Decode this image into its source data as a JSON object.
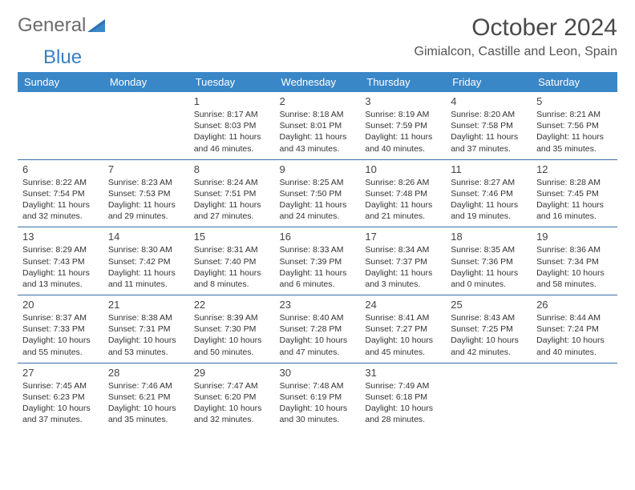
{
  "brand": {
    "word1": "General",
    "word2": "Blue"
  },
  "title": "October 2024",
  "location": "Gimialcon, Castille and Leon, Spain",
  "accent_color": "#3a87c8",
  "border_color": "#3a6fa5",
  "text_color": "#333333",
  "background_color": "#ffffff",
  "day_headers": [
    "Sunday",
    "Monday",
    "Tuesday",
    "Wednesday",
    "Thursday",
    "Friday",
    "Saturday"
  ],
  "weeks": [
    [
      null,
      null,
      {
        "n": "1",
        "sr": "Sunrise: 8:17 AM",
        "ss": "Sunset: 8:03 PM",
        "d1": "Daylight: 11 hours",
        "d2": "and 46 minutes."
      },
      {
        "n": "2",
        "sr": "Sunrise: 8:18 AM",
        "ss": "Sunset: 8:01 PM",
        "d1": "Daylight: 11 hours",
        "d2": "and 43 minutes."
      },
      {
        "n": "3",
        "sr": "Sunrise: 8:19 AM",
        "ss": "Sunset: 7:59 PM",
        "d1": "Daylight: 11 hours",
        "d2": "and 40 minutes."
      },
      {
        "n": "4",
        "sr": "Sunrise: 8:20 AM",
        "ss": "Sunset: 7:58 PM",
        "d1": "Daylight: 11 hours",
        "d2": "and 37 minutes."
      },
      {
        "n": "5",
        "sr": "Sunrise: 8:21 AM",
        "ss": "Sunset: 7:56 PM",
        "d1": "Daylight: 11 hours",
        "d2": "and 35 minutes."
      }
    ],
    [
      {
        "n": "6",
        "sr": "Sunrise: 8:22 AM",
        "ss": "Sunset: 7:54 PM",
        "d1": "Daylight: 11 hours",
        "d2": "and 32 minutes."
      },
      {
        "n": "7",
        "sr": "Sunrise: 8:23 AM",
        "ss": "Sunset: 7:53 PM",
        "d1": "Daylight: 11 hours",
        "d2": "and 29 minutes."
      },
      {
        "n": "8",
        "sr": "Sunrise: 8:24 AM",
        "ss": "Sunset: 7:51 PM",
        "d1": "Daylight: 11 hours",
        "d2": "and 27 minutes."
      },
      {
        "n": "9",
        "sr": "Sunrise: 8:25 AM",
        "ss": "Sunset: 7:50 PM",
        "d1": "Daylight: 11 hours",
        "d2": "and 24 minutes."
      },
      {
        "n": "10",
        "sr": "Sunrise: 8:26 AM",
        "ss": "Sunset: 7:48 PM",
        "d1": "Daylight: 11 hours",
        "d2": "and 21 minutes."
      },
      {
        "n": "11",
        "sr": "Sunrise: 8:27 AM",
        "ss": "Sunset: 7:46 PM",
        "d1": "Daylight: 11 hours",
        "d2": "and 19 minutes."
      },
      {
        "n": "12",
        "sr": "Sunrise: 8:28 AM",
        "ss": "Sunset: 7:45 PM",
        "d1": "Daylight: 11 hours",
        "d2": "and 16 minutes."
      }
    ],
    [
      {
        "n": "13",
        "sr": "Sunrise: 8:29 AM",
        "ss": "Sunset: 7:43 PM",
        "d1": "Daylight: 11 hours",
        "d2": "and 13 minutes."
      },
      {
        "n": "14",
        "sr": "Sunrise: 8:30 AM",
        "ss": "Sunset: 7:42 PM",
        "d1": "Daylight: 11 hours",
        "d2": "and 11 minutes."
      },
      {
        "n": "15",
        "sr": "Sunrise: 8:31 AM",
        "ss": "Sunset: 7:40 PM",
        "d1": "Daylight: 11 hours",
        "d2": "and 8 minutes."
      },
      {
        "n": "16",
        "sr": "Sunrise: 8:33 AM",
        "ss": "Sunset: 7:39 PM",
        "d1": "Daylight: 11 hours",
        "d2": "and 6 minutes."
      },
      {
        "n": "17",
        "sr": "Sunrise: 8:34 AM",
        "ss": "Sunset: 7:37 PM",
        "d1": "Daylight: 11 hours",
        "d2": "and 3 minutes."
      },
      {
        "n": "18",
        "sr": "Sunrise: 8:35 AM",
        "ss": "Sunset: 7:36 PM",
        "d1": "Daylight: 11 hours",
        "d2": "and 0 minutes."
      },
      {
        "n": "19",
        "sr": "Sunrise: 8:36 AM",
        "ss": "Sunset: 7:34 PM",
        "d1": "Daylight: 10 hours",
        "d2": "and 58 minutes."
      }
    ],
    [
      {
        "n": "20",
        "sr": "Sunrise: 8:37 AM",
        "ss": "Sunset: 7:33 PM",
        "d1": "Daylight: 10 hours",
        "d2": "and 55 minutes."
      },
      {
        "n": "21",
        "sr": "Sunrise: 8:38 AM",
        "ss": "Sunset: 7:31 PM",
        "d1": "Daylight: 10 hours",
        "d2": "and 53 minutes."
      },
      {
        "n": "22",
        "sr": "Sunrise: 8:39 AM",
        "ss": "Sunset: 7:30 PM",
        "d1": "Daylight: 10 hours",
        "d2": "and 50 minutes."
      },
      {
        "n": "23",
        "sr": "Sunrise: 8:40 AM",
        "ss": "Sunset: 7:28 PM",
        "d1": "Daylight: 10 hours",
        "d2": "and 47 minutes."
      },
      {
        "n": "24",
        "sr": "Sunrise: 8:41 AM",
        "ss": "Sunset: 7:27 PM",
        "d1": "Daylight: 10 hours",
        "d2": "and 45 minutes."
      },
      {
        "n": "25",
        "sr": "Sunrise: 8:43 AM",
        "ss": "Sunset: 7:25 PM",
        "d1": "Daylight: 10 hours",
        "d2": "and 42 minutes."
      },
      {
        "n": "26",
        "sr": "Sunrise: 8:44 AM",
        "ss": "Sunset: 7:24 PM",
        "d1": "Daylight: 10 hours",
        "d2": "and 40 minutes."
      }
    ],
    [
      {
        "n": "27",
        "sr": "Sunrise: 7:45 AM",
        "ss": "Sunset: 6:23 PM",
        "d1": "Daylight: 10 hours",
        "d2": "and 37 minutes."
      },
      {
        "n": "28",
        "sr": "Sunrise: 7:46 AM",
        "ss": "Sunset: 6:21 PM",
        "d1": "Daylight: 10 hours",
        "d2": "and 35 minutes."
      },
      {
        "n": "29",
        "sr": "Sunrise: 7:47 AM",
        "ss": "Sunset: 6:20 PM",
        "d1": "Daylight: 10 hours",
        "d2": "and 32 minutes."
      },
      {
        "n": "30",
        "sr": "Sunrise: 7:48 AM",
        "ss": "Sunset: 6:19 PM",
        "d1": "Daylight: 10 hours",
        "d2": "and 30 minutes."
      },
      {
        "n": "31",
        "sr": "Sunrise: 7:49 AM",
        "ss": "Sunset: 6:18 PM",
        "d1": "Daylight: 10 hours",
        "d2": "and 28 minutes."
      },
      null,
      null
    ]
  ]
}
